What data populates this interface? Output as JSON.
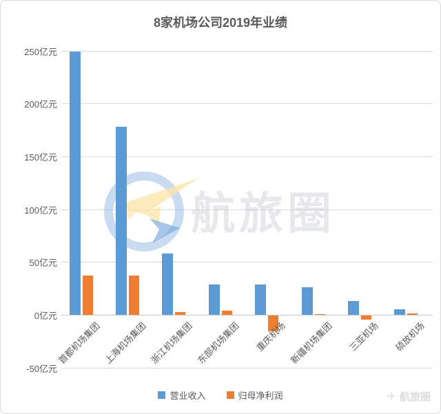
{
  "title": "8家机场公司2019年业绩",
  "chart_data": {
    "type": "bar",
    "title": "8家机场公司2019年业绩",
    "categories": [
      "首都机场集团",
      "上海机场集团",
      "浙江机场集团",
      "东部机场集团",
      "重庆机场",
      "新疆机场集团",
      "三亚机场",
      "硕放机场"
    ],
    "series": [
      {
        "name": "营业收入",
        "color": "#5B9BD5",
        "values": [
          249,
          178,
          58,
          29,
          29,
          26,
          13,
          5
        ]
      },
      {
        "name": "归母净利润",
        "color": "#ED7D31",
        "values": [
          37,
          37,
          2.5,
          4,
          -15,
          0.5,
          -4,
          1.5
        ]
      }
    ],
    "unit_suffix": "亿元",
    "yticks": [
      250,
      200,
      150,
      100,
      50,
      0,
      -50
    ],
    "ylim": [
      -50,
      250
    ],
    "grid": true,
    "legend_position": "bottom",
    "xlabel": "",
    "ylabel": ""
  },
  "legend": {
    "revenue_label": "营业收入",
    "profit_label": "归母净利润"
  },
  "watermark_center": {
    "text": "航旅圈"
  },
  "watermark_corner": {
    "text": "航旅圈"
  }
}
